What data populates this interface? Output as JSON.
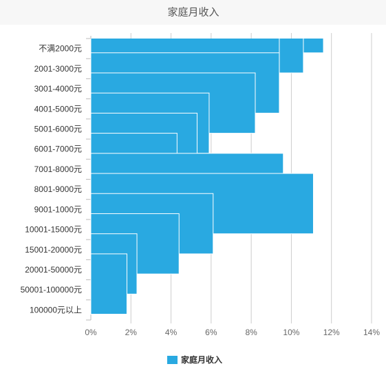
{
  "chart_data": {
    "type": "bar",
    "orientation": "horizontal",
    "title": "家庭月收入",
    "categories": [
      "不满2000元",
      "2001-3000元",
      "3001-4000元",
      "4001-5000元",
      "5001-6000元",
      "6001-7000元",
      "7001-8000元",
      "8001-9000元",
      "9001-1000元",
      "10001-15000元",
      "15001-20000元",
      "20001-50000元",
      "50001-100000元",
      "100000元以上"
    ],
    "series": [
      {
        "name": "家庭月收入",
        "values": [
          11.6,
          10.6,
          9.4,
          9.4,
          8.2,
          5.9,
          5.3,
          4.3,
          9.6,
          11.1,
          6.1,
          4.4,
          2.3,
          1.8
        ],
        "color": "#29a9e1"
      }
    ],
    "xlim": [
      0,
      14
    ],
    "x_tick_values": [
      0,
      2,
      4,
      6,
      8,
      10,
      12,
      14
    ],
    "x_tick_labels": [
      "0%",
      "2%",
      "4%",
      "6%",
      "8%",
      "10%",
      "12%",
      "14%"
    ],
    "grid": true,
    "legend_position": "bottom"
  }
}
